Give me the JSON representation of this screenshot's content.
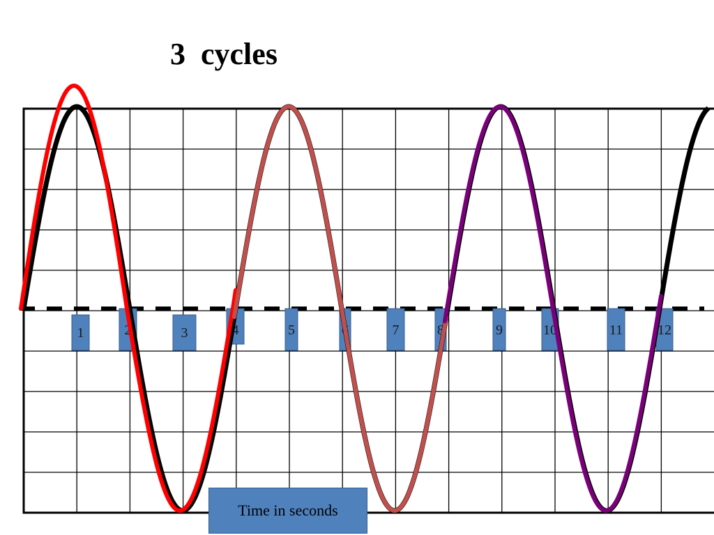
{
  "title": "3  cycles",
  "time_label": "Time in seconds",
  "markers": [
    "1",
    "2",
    "3",
    "4",
    "5",
    "6",
    "7",
    "8",
    "9",
    "10",
    "11",
    "12"
  ],
  "grid": {
    "columns": 13,
    "rows": 10
  },
  "colors": {
    "reference_wave": "#000000",
    "cycle_1": "#ff0000",
    "cycle_2": "#c0504d",
    "cycle_3": "#7a007a",
    "marker_fill": "#4f81bd",
    "marker_border": "#385d8a"
  },
  "waves": [
    {
      "id": "reference-wave",
      "color_key": "reference_wave",
      "cycles": 3
    },
    {
      "id": "cycle-1-wave",
      "color_key": "cycle_1",
      "cycle_index": 1
    },
    {
      "id": "cycle-2-wave",
      "color_key": "cycle_2",
      "cycle_index": 2
    },
    {
      "id": "cycle-3-wave",
      "color_key": "cycle_3",
      "cycle_index": 3
    }
  ]
}
